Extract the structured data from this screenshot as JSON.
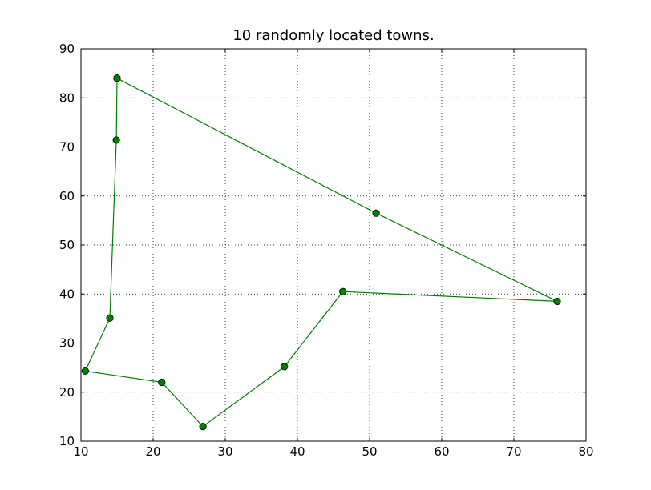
{
  "chart_data": {
    "type": "line",
    "title": "10 randomly located towns.",
    "xlabel": "",
    "ylabel": "",
    "xlim": [
      10,
      80
    ],
    "ylim": [
      10,
      90
    ],
    "xticks": [
      10,
      20,
      30,
      40,
      50,
      60,
      70,
      80
    ],
    "yticks": [
      10,
      20,
      30,
      40,
      50,
      60,
      70,
      80,
      90
    ],
    "grid": true,
    "colors": {
      "line": "#008000",
      "marker": "#008000",
      "marker_edge": "#000000"
    },
    "series": [
      {
        "x": [
          15.0,
          50.9,
          76.0,
          46.3,
          38.2,
          26.9,
          21.2,
          10.6,
          14.0,
          14.9,
          15.0
        ],
        "y": [
          84.0,
          56.5,
          38.5,
          40.5,
          25.2,
          13.0,
          22.0,
          24.3,
          35.1,
          71.4,
          84.0
        ]
      }
    ]
  }
}
